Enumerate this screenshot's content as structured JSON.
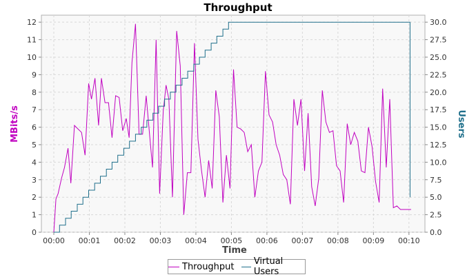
{
  "chart_data": {
    "type": "line",
    "title": "Throughput",
    "xlabel": "Time",
    "ylabel": "MBits/s",
    "y2label": "Users",
    "xlim": [
      -0.35,
      10.45
    ],
    "ylim": [
      0,
      12.4
    ],
    "y2lim": [
      0,
      31
    ],
    "xticks": [
      0,
      1,
      2,
      3,
      4,
      5,
      6,
      7,
      8,
      9,
      10
    ],
    "xtick_labels": [
      "00:00",
      "00:01",
      "00:02",
      "00:03",
      "00:04",
      "00:05",
      "00:06",
      "00:07",
      "00:08",
      "00:09",
      "00:10"
    ],
    "yticks": [
      0,
      1,
      2,
      3,
      4,
      5,
      6,
      7,
      8,
      9,
      10,
      11,
      12
    ],
    "ytick_labels": [
      "0",
      "1",
      "2",
      "3",
      "4",
      "5",
      "6",
      "7",
      "8",
      "9",
      "10",
      "11",
      "12"
    ],
    "y2ticks": [
      0,
      2.5,
      5,
      7.5,
      10,
      12.5,
      15,
      17.5,
      20,
      22.5,
      25,
      27.5,
      30
    ],
    "y2tick_labels": [
      "0.0",
      "2.5",
      "5.0",
      "7.5",
      "10.0",
      "12.5",
      "15.0",
      "17.5",
      "20.0",
      "22.5",
      "25.0",
      "27.5",
      "30.0"
    ],
    "grid": true,
    "legend_position": "bottom",
    "series": [
      {
        "name": "Throughput",
        "axis": "left",
        "color": "#c000c0",
        "x": [
          0.0,
          0.06,
          0.12,
          0.22,
          0.3,
          0.4,
          0.48,
          0.58,
          0.68,
          0.78,
          0.88,
          0.98,
          1.06,
          1.16,
          1.26,
          1.34,
          1.44,
          1.54,
          1.64,
          1.74,
          1.84,
          1.94,
          2.04,
          2.12,
          2.2,
          2.3,
          2.4,
          2.5,
          2.6,
          2.7,
          2.78,
          2.88,
          2.98,
          3.08,
          3.16,
          3.24,
          3.34,
          3.46,
          3.56,
          3.66,
          3.76,
          3.86,
          3.96,
          4.06,
          4.16,
          4.26,
          4.36,
          4.46,
          4.56,
          4.66,
          4.76,
          4.86,
          4.96,
          5.06,
          5.16,
          5.26,
          5.36,
          5.46,
          5.56,
          5.66,
          5.76,
          5.86,
          5.96,
          6.06,
          6.16,
          6.26,
          6.36,
          6.46,
          6.56,
          6.66,
          6.76,
          6.86,
          6.96,
          7.06,
          7.16,
          7.26,
          7.36,
          7.46,
          7.56,
          7.66,
          7.76,
          7.86,
          7.96,
          8.06,
          8.16,
          8.26,
          8.36,
          8.46,
          8.56,
          8.66,
          8.76,
          8.86,
          8.96,
          9.06,
          9.16,
          9.26,
          9.36,
          9.46,
          9.56,
          9.66,
          9.76,
          9.86,
          9.96,
          10.06
        ],
        "values": [
          0.0,
          1.9,
          2.2,
          3.1,
          3.7,
          4.8,
          2.8,
          6.1,
          5.9,
          5.7,
          4.4,
          8.5,
          7.6,
          8.8,
          6.1,
          8.8,
          7.4,
          7.4,
          5.4,
          7.8,
          7.7,
          5.8,
          6.5,
          5.4,
          9.7,
          11.9,
          5.6,
          5.6,
          7.8,
          5.5,
          3.7,
          11.0,
          2.2,
          6.9,
          8.4,
          7.6,
          2.0,
          11.5,
          9.5,
          1.0,
          3.4,
          3.4,
          10.8,
          5.3,
          3.5,
          2.0,
          4.1,
          2.5,
          8.1,
          6.6,
          1.7,
          4.4,
          2.5,
          9.3,
          6.0,
          5.9,
          5.7,
          4.6,
          5.0,
          2.0,
          3.5,
          4.0,
          9.2,
          6.7,
          6.3,
          5.0,
          4.4,
          3.3,
          3.0,
          1.6,
          7.6,
          6.1,
          7.6,
          3.5,
          6.8,
          2.6,
          1.5,
          3.1,
          8.1,
          6.3,
          5.7,
          5.8,
          3.8,
          3.5,
          1.7,
          6.2,
          5.0,
          5.7,
          5.2,
          3.5,
          3.4,
          6.0,
          4.9,
          2.9,
          1.7,
          8.2,
          3.7,
          7.6,
          1.4,
          1.5,
          1.3,
          1.3,
          1.3,
          1.3
        ]
      },
      {
        "name": "Virtual Users",
        "axis": "right",
        "color": "#1f6f8b",
        "x": [
          0.0,
          0.16,
          0.33,
          0.49,
          0.66,
          0.82,
          0.98,
          1.15,
          1.31,
          1.48,
          1.64,
          1.8,
          1.97,
          2.13,
          2.3,
          2.46,
          2.62,
          2.79,
          2.95,
          3.12,
          3.28,
          3.44,
          3.61,
          3.77,
          3.94,
          4.1,
          4.26,
          4.43,
          4.59,
          4.76,
          4.92,
          5.08,
          6.0,
          7.0,
          8.0,
          9.0,
          9.95,
          10.03
        ],
        "values": [
          0,
          1,
          2,
          3,
          4,
          5,
          6,
          7,
          8,
          9,
          10,
          11,
          12,
          13,
          14,
          15,
          16,
          17,
          18,
          19,
          20,
          21,
          22,
          23,
          24,
          25,
          26,
          27,
          28,
          29,
          30,
          30,
          30,
          30,
          30,
          30,
          30,
          5
        ]
      }
    ]
  }
}
